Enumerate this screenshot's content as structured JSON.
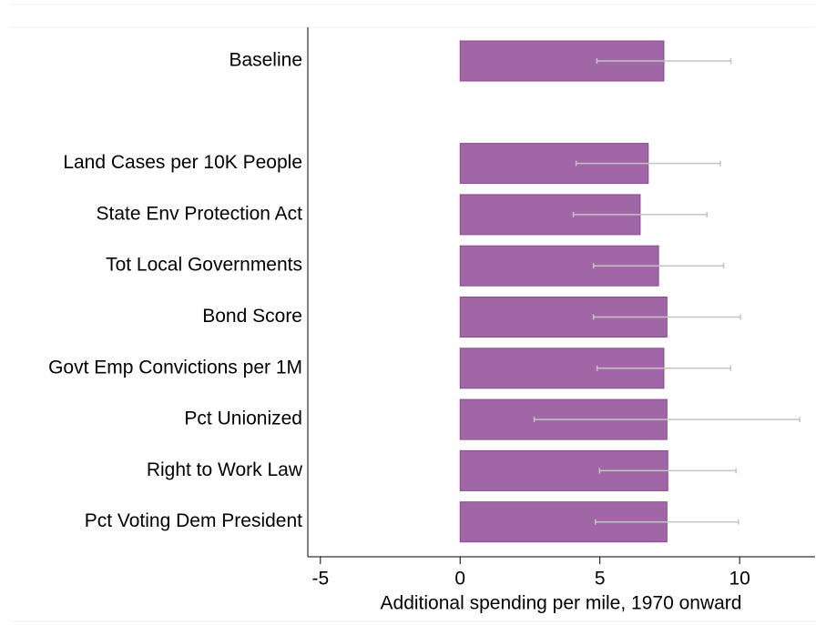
{
  "chart_data": {
    "type": "bar",
    "orientation": "horizontal",
    "xlabel": "Additional spending per mile, 1970 onward",
    "categories": [
      "Baseline",
      null,
      "Land Cases per 10K People",
      "State Env Protection Act",
      "Tot Local Governments",
      "Bond Score",
      "Govt Emp Convictions per 1M",
      "Pct Unionized",
      "Right to Work Law",
      "Pct Voting Dem President"
    ],
    "values": [
      7.29,
      null,
      6.73,
      6.44,
      7.1,
      7.4,
      7.29,
      7.4,
      7.43,
      7.4
    ],
    "errors": [
      2.4,
      null,
      2.58,
      2.39,
      2.33,
      2.63,
      2.39,
      4.75,
      2.44,
      2.56
    ],
    "color": "#a066a6",
    "error_color": "#c4c4c4",
    "xlim": [
      -5.45,
      12.7
    ],
    "xticks": [
      -5,
      0,
      5,
      10
    ]
  }
}
